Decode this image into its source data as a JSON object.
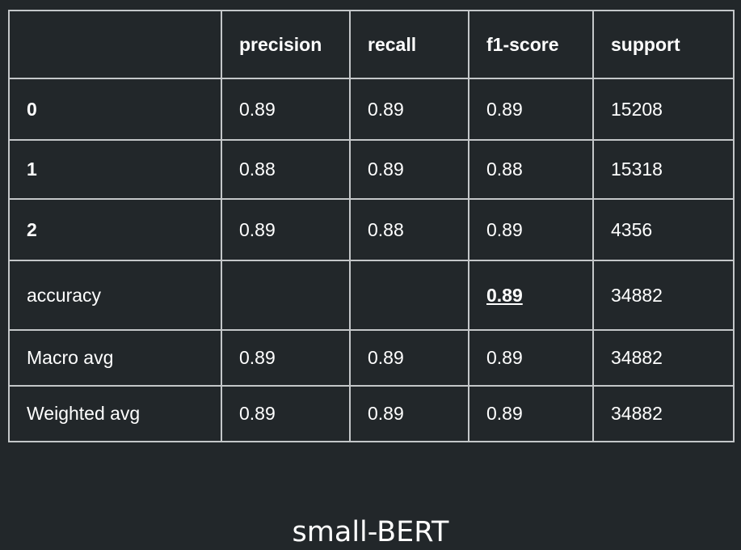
{
  "chart_data": {
    "type": "table",
    "title": "small-BERT",
    "columns": [
      "",
      "precision",
      "recall",
      "f1-score",
      "support"
    ],
    "rows": [
      {
        "label": "0",
        "precision": "0.89",
        "recall": "0.89",
        "f1": "0.89",
        "support": "15208"
      },
      {
        "label": "1",
        "precision": "0.88",
        "recall": "0.89",
        "f1": "0.88",
        "support": "15318"
      },
      {
        "label": "2",
        "precision": "0.89",
        "recall": "0.88",
        "f1": "0.89",
        "support": "4356"
      },
      {
        "label": "accuracy",
        "precision": "",
        "recall": "",
        "f1": "0.89",
        "support": "34882"
      },
      {
        "label": "Macro avg",
        "precision": "0.89",
        "recall": "0.89",
        "f1": "0.89",
        "support": "34882"
      },
      {
        "label": "Weighted avg",
        "precision": "0.89",
        "recall": "0.89",
        "f1": "0.89",
        "support": "34882"
      }
    ]
  }
}
